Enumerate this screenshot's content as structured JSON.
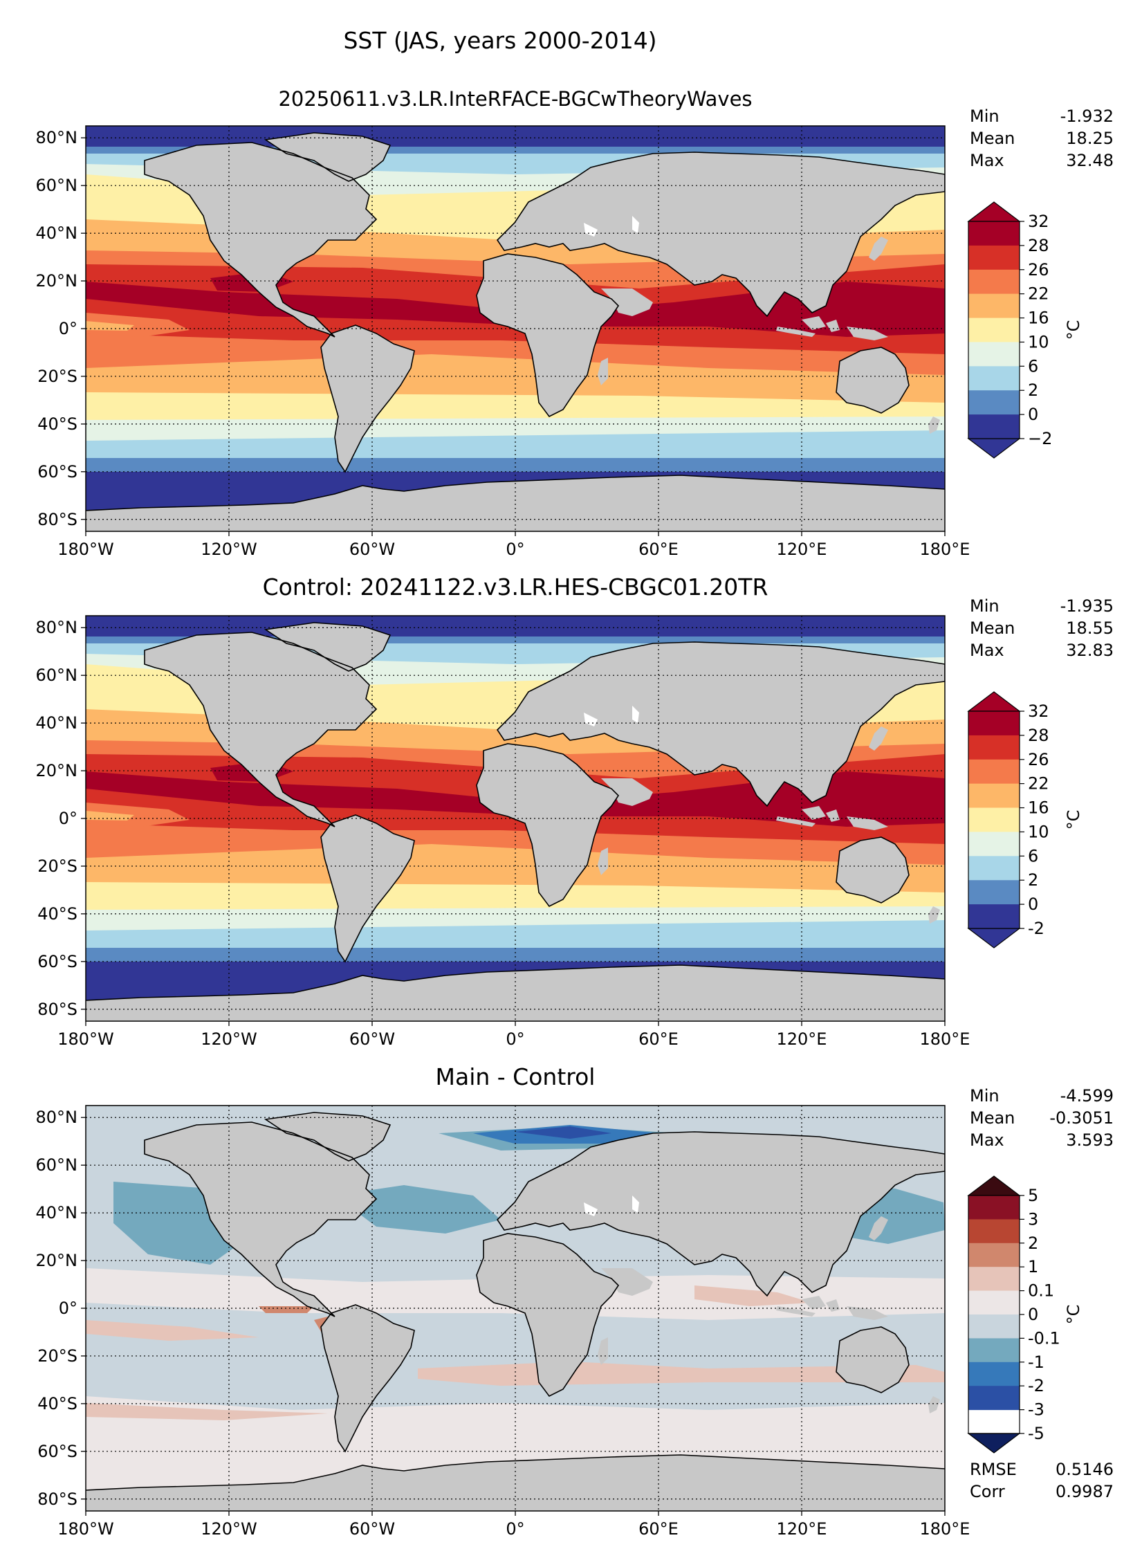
{
  "figure": {
    "title": "SST (JAS, years 2000-2014)"
  },
  "axes": {
    "lat_ticks": [
      "80°N",
      "60°N",
      "40°N",
      "20°N",
      "0°",
      "20°S",
      "40°S",
      "60°S",
      "80°S"
    ],
    "lon_ticks": [
      "180°W",
      "120°W",
      "60°W",
      "0°",
      "60°E",
      "120°E",
      "180°E"
    ]
  },
  "colors": {
    "land": "#c8c8c8",
    "sst_levels": [
      "#313695",
      "#5a8ac2",
      "#a8d6e8",
      "#e5f3e6",
      "#fef0a6",
      "#fdb768",
      "#f47a4b",
      "#d73027",
      "#a50026"
    ],
    "diff_levels": [
      "#0e1f5e",
      "#2b50a5",
      "#3679ba",
      "#74a9be",
      "#c9d5dd",
      "#ece6e6",
      "#e6c4b9",
      "#d0876d",
      "#b84632",
      "#8a1125",
      "#3a0a10"
    ]
  },
  "chart_data": [
    {
      "type": "filled-contour-map",
      "title": "20250611.v3.LR.InteRFACE-BGCwTheoryWaves",
      "variable": "SST",
      "units": "°C",
      "colorbar_label": "°C",
      "colorbar_ticks": [
        "32",
        "28",
        "26",
        "22",
        "16",
        "10",
        "6",
        "2",
        "0",
        "−2"
      ],
      "levels": [
        -2,
        0,
        2,
        6,
        10,
        16,
        22,
        26,
        28,
        32
      ],
      "stats": {
        "min_label": "Min",
        "min": "-1.932",
        "mean_label": "Mean",
        "mean": "18.25",
        "max_label": "Max",
        "max": "32.48"
      }
    },
    {
      "type": "filled-contour-map",
      "title": "Control: 20241122.v3.LR.HES-CBGC01.20TR",
      "variable": "SST",
      "units": "°C",
      "colorbar_label": "°C",
      "colorbar_ticks": [
        "32",
        "28",
        "26",
        "22",
        "16",
        "10",
        "6",
        "2",
        "0",
        "-2"
      ],
      "levels": [
        -2,
        0,
        2,
        6,
        10,
        16,
        22,
        26,
        28,
        32
      ],
      "stats": {
        "min_label": "Min",
        "min": "-1.935",
        "mean_label": "Mean",
        "mean": "18.55",
        "max_label": "Max",
        "max": "32.83"
      }
    },
    {
      "type": "filled-contour-map",
      "title": "Main - Control",
      "variable": "SST difference",
      "units": "°C",
      "colorbar_label": "°C",
      "colorbar_ticks": [
        "5",
        "3",
        "2",
        "1",
        "0.1",
        "0",
        "-0.1",
        "-1",
        "-2",
        "-3",
        "-5"
      ],
      "levels": [
        -5,
        -3,
        -2,
        -1,
        -0.1,
        0,
        0.1,
        1,
        2,
        3,
        5
      ],
      "stats": {
        "min_label": "Min",
        "min": "-4.599",
        "mean_label": "Mean",
        "mean": "-0.3051",
        "max_label": "Max",
        "max": "3.593"
      },
      "metrics": {
        "rmse_label": "RMSE",
        "rmse": "0.5146",
        "corr_label": "Corr",
        "corr": "0.9987"
      }
    }
  ]
}
